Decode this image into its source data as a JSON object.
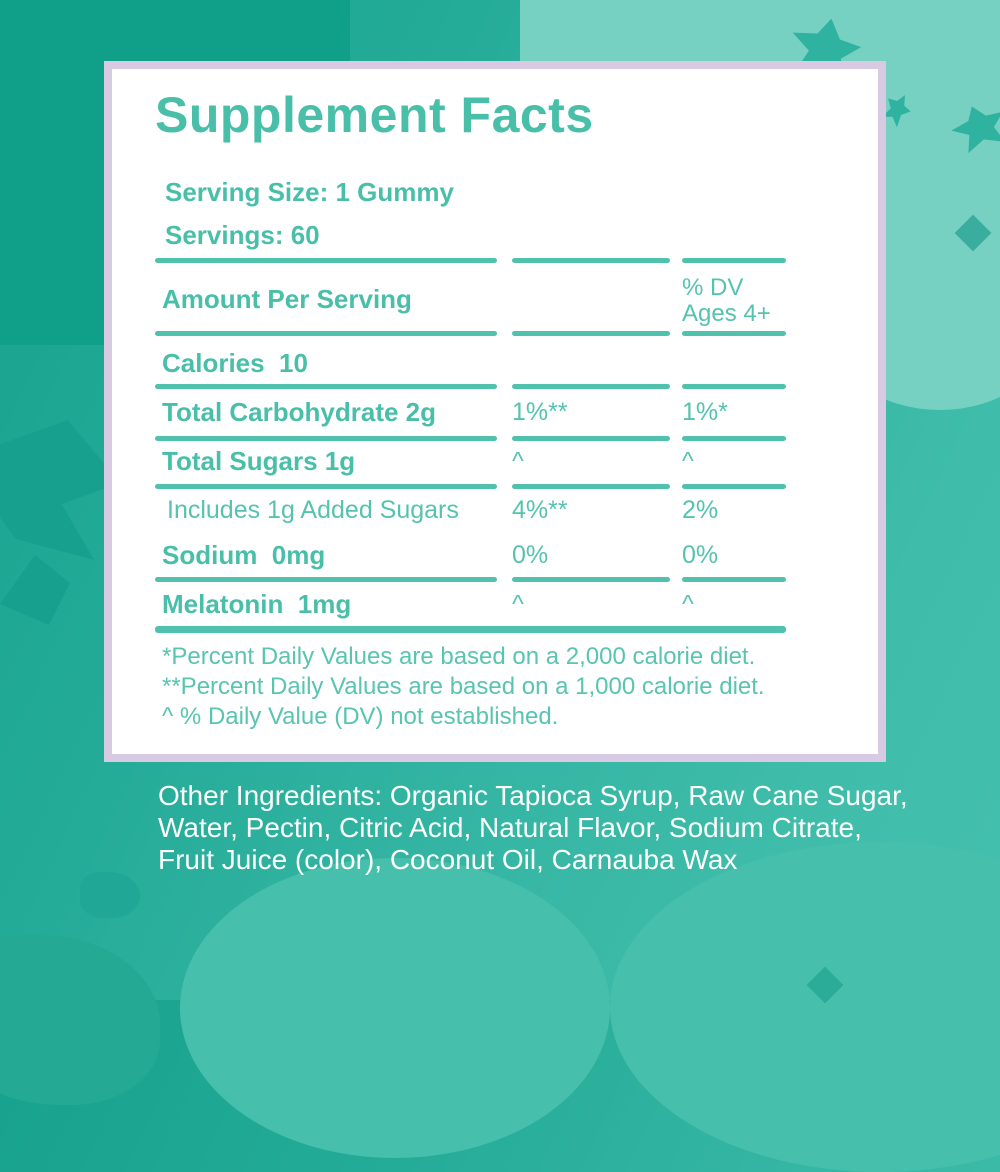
{
  "panel": {
    "title": "Supplement Facts",
    "serving_size": "Serving Size: 1 Gummy",
    "servings": "Servings: 60",
    "columns": {
      "amount": "Amount Per Serving",
      "dv_line1": "% DV",
      "dv_line2": "Ages 4+"
    },
    "rows": [
      {
        "name": "Calories  10",
        "dv_child": "",
        "dv_adult": ""
      },
      {
        "name": "Total Carbohydrate 2g",
        "dv_child": "1%**",
        "dv_adult": "1%*"
      },
      {
        "name": "Total Sugars 1g",
        "dv_child": "^",
        "dv_adult": "^"
      },
      {
        "name": "Includes 1g Added Sugars",
        "dv_child": "4%**",
        "dv_adult": "2%"
      },
      {
        "name": "Sodium  0mg",
        "dv_child": "0%",
        "dv_adult": "0%"
      },
      {
        "name": "Melatonin  1mg",
        "dv_child": "^",
        "dv_adult": "^"
      }
    ],
    "footnotes": [
      "*Percent Daily Values are based on a 2,000 calorie diet.",
      "**Percent Daily Values are based on a 1,000 calorie diet.",
      "^ % Daily Value (DV) not established."
    ]
  },
  "ingredients": {
    "lines": [
      "Other Ingredients: Organic Tapioca Syrup, Raw Cane Sugar,",
      "Water, Pectin, Citric Acid, Natural Flavor, Sodium Citrate,",
      "Fruit Juice (color), Coconut Oil, Carnauba Wax"
    ]
  },
  "colors": {
    "teal_text": "#49BFAA",
    "teal_text_light": "#55C3AF",
    "divider": "#4FC1AC",
    "card_border": "#D8CAE2",
    "card_background": "#FFFFFF",
    "background_base": "#33B4A2",
    "background_dark": "#10A08A",
    "background_light": "#77D1C3",
    "ingredients_text": "#FFFFFF"
  }
}
